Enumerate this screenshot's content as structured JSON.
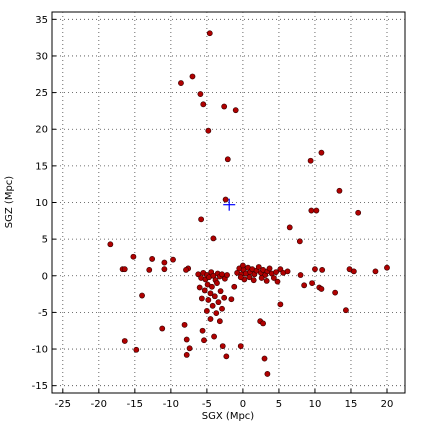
{
  "chart_data": {
    "type": "scatter",
    "xlabel": "SGX (Mpc)",
    "ylabel": "SGZ (Mpc)",
    "xlim": [
      -26.5,
      22.5
    ],
    "ylim": [
      -16,
      36
    ],
    "xticks": [
      -25,
      -20,
      -15,
      -10,
      -5,
      0,
      5,
      10,
      15,
      20
    ],
    "yticks": [
      -15,
      -10,
      -5,
      0,
      5,
      10,
      15,
      20,
      25,
      30,
      35
    ],
    "grid": true,
    "series": [
      {
        "color": "#b00000",
        "marker": "o",
        "x": [
          -4.6,
          -7.0,
          -8.6,
          -5.9,
          -5.5,
          -2.6,
          -1.0,
          -4.8,
          -2.1,
          9.4,
          10.9,
          13.4,
          -2.4,
          9.5,
          10.2,
          16.0,
          -5.8,
          6.5,
          7.9,
          -4.1,
          -18.4,
          -15.2,
          -12.6,
          -10.9,
          -9.7,
          -16.7,
          -16.4,
          -10.9,
          -7.6,
          -7.9,
          -13.0,
          -14.0,
          -6.2,
          -5.8,
          -5.5,
          -5.2,
          -5.0,
          -4.7,
          -4.4,
          -4.1,
          -3.8,
          -3.5,
          -3.2,
          -2.9,
          -2.5,
          -2.2,
          -4.9,
          -4.3,
          -3.6,
          -5.3,
          -4.5,
          -3.9,
          -3.1,
          -2.6,
          -4.8,
          -3.4,
          -4.2,
          -2.9,
          -5.0,
          -3.7,
          -4.5,
          -3.2,
          -1.6,
          -1.2,
          -6.0,
          -5.7,
          -0.8,
          -0.5,
          -0.2,
          0.1,
          0.4,
          0.7,
          1.0,
          1.3,
          1.6,
          1.9,
          2.2,
          2.5,
          2.8,
          3.1,
          3.4,
          3.7,
          4.0,
          4.3,
          4.6,
          0.2,
          0.9,
          1.5,
          2.6,
          3.3,
          4.8,
          5.2,
          5.6,
          6.2,
          0.0,
          -0.3,
          10.0,
          11.0,
          14.8,
          15.4,
          18.4,
          20.0,
          8.0,
          9.6,
          10.6,
          10.9,
          12.8,
          8.5,
          14.3,
          5.2,
          -11.2,
          -8.1,
          -7.8,
          -7.4,
          -7.8,
          -5.6,
          -5.4,
          -4.0,
          -2.8,
          -2.3,
          -0.3,
          2.4,
          2.8,
          3.0,
          3.4,
          -14.8,
          -16.4
        ],
        "y": [
          33.1,
          27.2,
          26.3,
          24.8,
          23.4,
          23.1,
          22.6,
          19.8,
          15.9,
          15.7,
          16.8,
          11.6,
          10.4,
          8.9,
          8.9,
          8.6,
          7.7,
          6.6,
          4.7,
          5.1,
          4.3,
          2.6,
          2.3,
          1.8,
          2.2,
          0.9,
          0.9,
          0.9,
          1.0,
          0.8,
          0.8,
          -2.7,
          0.2,
          -0.3,
          0.4,
          -0.5,
          0.1,
          -0.2,
          0.5,
          0.0,
          -0.6,
          0.3,
          -0.1,
          0.2,
          -0.4,
          0.1,
          -1.2,
          -1.5,
          -1.0,
          -2.0,
          -2.4,
          -2.8,
          -2.1,
          -3.0,
          -3.3,
          -3.6,
          -4.1,
          -4.5,
          -4.8,
          -5.1,
          -5.9,
          -6.2,
          -3.2,
          -1.5,
          -1.6,
          -3.1,
          0.4,
          1.0,
          0.2,
          0.8,
          0.3,
          1.1,
          0.5,
          0.9,
          0.2,
          0.7,
          1.2,
          0.4,
          0.8,
          0.1,
          0.6,
          1.0,
          0.3,
          -0.3,
          0.5,
          -0.5,
          -0.2,
          -0.6,
          -0.3,
          -0.7,
          -0.8,
          0.9,
          0.4,
          0.6,
          1.4,
          -0.2,
          0.9,
          0.8,
          0.9,
          0.6,
          0.6,
          1.1,
          0.1,
          -1.0,
          -1.6,
          -1.8,
          -2.3,
          -1.3,
          -4.7,
          -3.9,
          -7.2,
          -6.7,
          -8.7,
          -9.9,
          -10.8,
          -7.5,
          -8.8,
          -8.3,
          -9.6,
          -11.0,
          -9.6,
          -6.2,
          -6.5,
          -11.3,
          -13.4,
          -10.1,
          -8.9
        ]
      },
      {
        "color": "#0000ff",
        "marker": "+",
        "x": [
          -1.9
        ],
        "y": [
          9.7
        ]
      }
    ]
  }
}
